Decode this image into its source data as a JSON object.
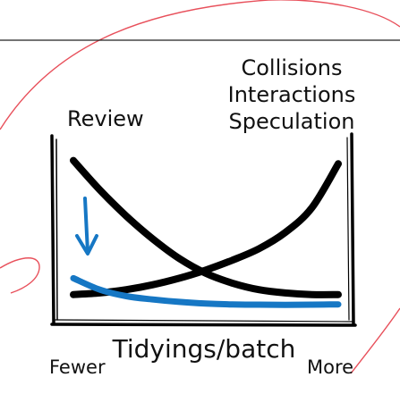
{
  "chart_data": {
    "type": "line",
    "title": "",
    "xlabel": "Tidyings/batch",
    "ylabel": "",
    "x_range_labels": {
      "low": "Fewer",
      "high": "More"
    },
    "grid": false,
    "legend": "none",
    "x": [
      0,
      1,
      2,
      3,
      4,
      5,
      6,
      7,
      8,
      9,
      10
    ],
    "ylim": [
      0,
      10
    ],
    "series": [
      {
        "name": "Review",
        "color": "#000000",
        "values": [
          9.2,
          7.4,
          5.8,
          4.4,
          3.2,
          2.3,
          1.7,
          1.3,
          1.1,
          1.0,
          1.0
        ]
      },
      {
        "name": "Collisions Interactions Speculation",
        "label_lines": [
          "Collisions",
          "Interactions",
          "Speculation"
        ],
        "color": "#000000",
        "values": [
          1.0,
          1.1,
          1.3,
          1.6,
          2.0,
          2.5,
          3.1,
          3.8,
          4.8,
          6.3,
          9.0
        ]
      },
      {
        "name": "",
        "color": "#1677c4",
        "values": [
          2.0,
          1.3,
          0.9,
          0.7,
          0.55,
          0.45,
          0.4,
          0.38,
          0.37,
          0.38,
          0.4
        ]
      }
    ],
    "arrow": {
      "color": "#1677c4",
      "direction": "down"
    }
  },
  "colors": {
    "decor_arc": "#e8505b",
    "axis": "#000000",
    "rule": "#222222"
  }
}
